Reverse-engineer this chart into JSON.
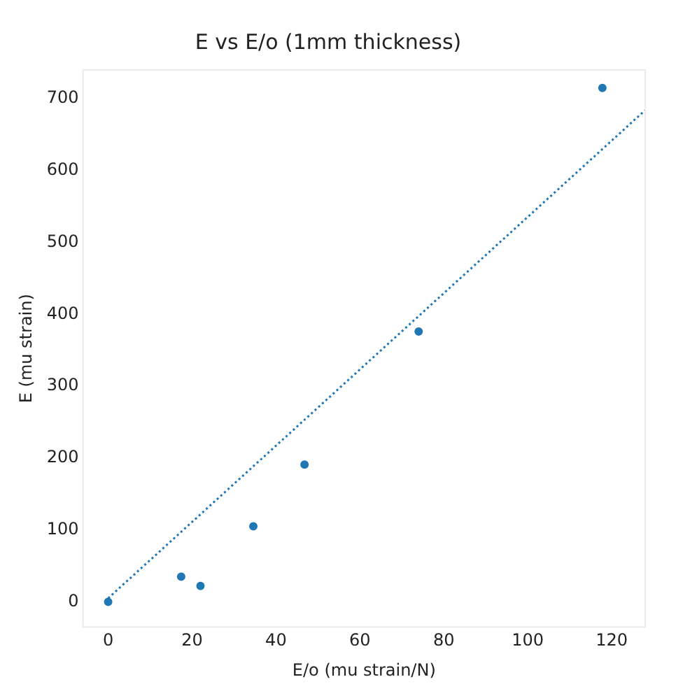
{
  "chart_data": {
    "type": "scatter",
    "title": "E vs E/o (1mm thickness)",
    "xlabel": "E/o (mu strain/N)",
    "ylabel": "E (mu strain)",
    "xlim": [
      -6,
      128
    ],
    "ylim": [
      -35,
      740
    ],
    "xticks": [
      0,
      20,
      40,
      60,
      80,
      100,
      120
    ],
    "yticks": [
      0,
      100,
      200,
      300,
      400,
      500,
      600,
      700
    ],
    "grid": false,
    "legend": false,
    "series": [
      {
        "type": "scatter",
        "color": "#1f77b4",
        "marker": "circle",
        "x": [
          0,
          17.4,
          22,
          34.6,
          46.8,
          74,
          117.8
        ],
        "values": [
          0,
          35,
          22,
          105,
          191,
          376,
          715
        ]
      },
      {
        "type": "line",
        "color": "#1f77b4",
        "line_style": "dotted",
        "marker": "none",
        "x": [
          0,
          128
        ],
        "values": [
          5,
          684
        ]
      }
    ]
  }
}
